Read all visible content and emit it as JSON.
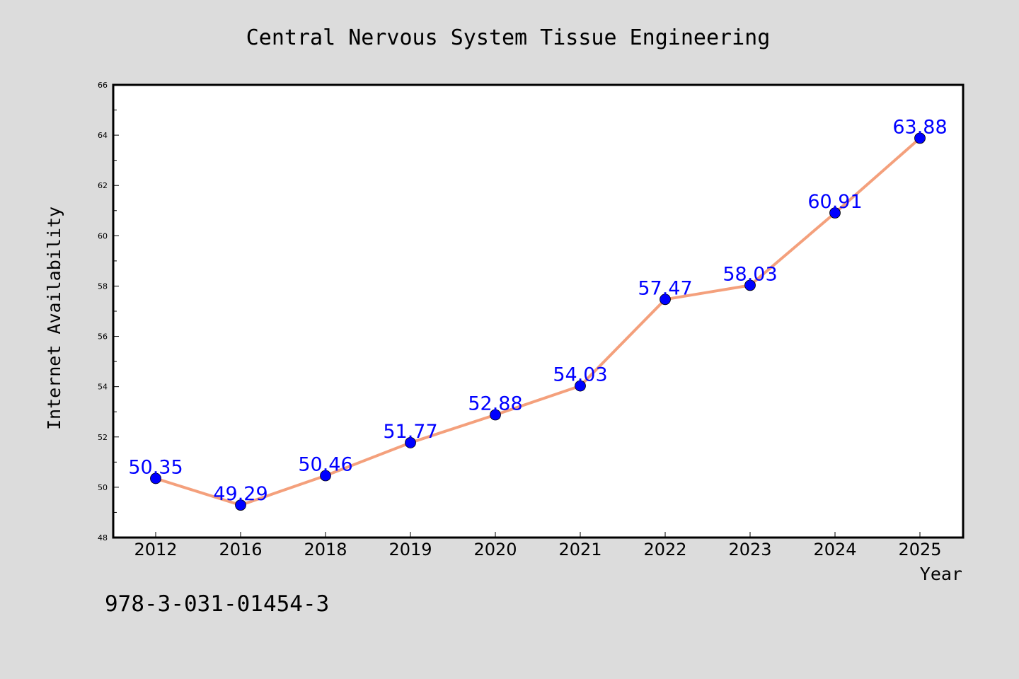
{
  "chart_data": {
    "type": "line",
    "title": "Central Nervous System Tissue Engineering",
    "xlabel": "Year",
    "ylabel": "Internet Availability",
    "categories": [
      "2012",
      "2016",
      "2018",
      "2019",
      "2020",
      "2021",
      "2022",
      "2023",
      "2024",
      "2025"
    ],
    "series": [
      {
        "values": [
          50.35,
          49.29,
          50.46,
          51.77,
          52.88,
          54.03,
          57.47,
          58.03,
          60.91,
          63.88
        ],
        "labels": [
          "50.35",
          "49.29",
          "50.46",
          "51.77",
          "52.88",
          "54.03",
          "57.47",
          "58.03",
          "60.91",
          "63.88"
        ],
        "line_color": "#f4a07c",
        "marker_color": "#0000ff"
      }
    ],
    "ylim": [
      48,
      66
    ],
    "yticks": [
      "48",
      "50",
      "52",
      "54",
      "56",
      "58",
      "60",
      "62",
      "64",
      "66"
    ],
    "grid": false,
    "legend": "none"
  },
  "footnote": "978-3-031-01454-3",
  "colors": {
    "background": "#dcdcdc",
    "plot_area": "#ffffff",
    "line": "#f4a07c",
    "marker": "#0000ff",
    "data_label": "#0000ff"
  }
}
